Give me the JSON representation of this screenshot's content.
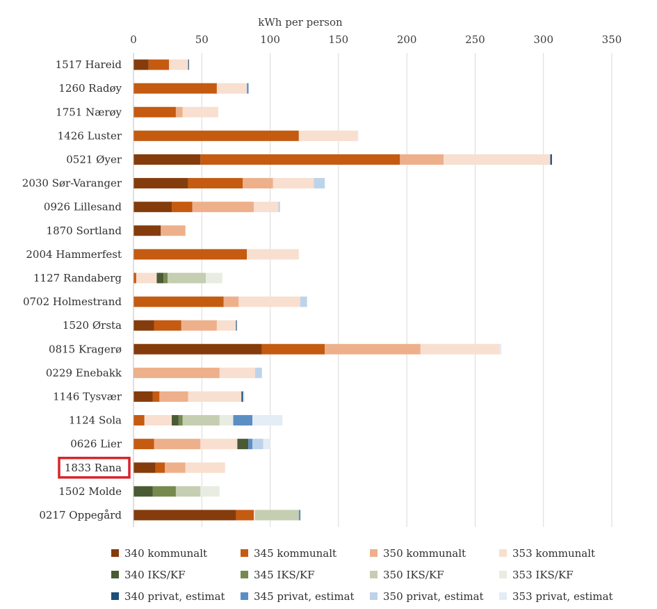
{
  "chart_data": {
    "type": "bar",
    "orientation": "horizontal",
    "stacked": true,
    "xlabel": "kWh per person",
    "xlim": [
      0,
      350
    ],
    "xticks": [
      0,
      50,
      100,
      150,
      200,
      250,
      300,
      350
    ],
    "grid": "vertical",
    "legend_position": "bottom",
    "highlighted_category": "1833 Rana",
    "categories": [
      "1517 Hareid",
      "1260 Radøy",
      "1751 Nærøy",
      "1426 Luster",
      "0521 Øyer",
      "2030 Sør-Varanger",
      "0926 Lillesand",
      "1870 Sortland",
      "2004 Hammerfest",
      "1127 Randaberg",
      "0702 Holmestrand",
      "1520 Ørsta",
      "0815 Kragerø",
      "0229 Enebakk",
      "1146 Tysvær",
      "1124 Sola",
      "0626 Lier",
      "1833 Rana",
      "1502 Molde",
      "0217 Oppegård"
    ],
    "series": [
      {
        "name": "340 kommunalt",
        "color": "#843c0c",
        "values": [
          11,
          0,
          0,
          0,
          49,
          40,
          28,
          20,
          0,
          0,
          0,
          15,
          94,
          0,
          14,
          0,
          0,
          16,
          0,
          75
        ]
      },
      {
        "name": "345 kommunalt",
        "color": "#c55a11",
        "values": [
          15,
          61,
          31,
          121,
          146,
          40,
          15,
          0,
          83,
          2,
          66,
          20,
          46,
          0,
          5,
          8,
          15,
          7,
          0,
          13
        ]
      },
      {
        "name": "350 kommunalt",
        "color": "#edb08b",
        "values": [
          0,
          0,
          5,
          0,
          32,
          22,
          45,
          18,
          0,
          0,
          11,
          26,
          70,
          63,
          21,
          0,
          34,
          15,
          0,
          0
        ]
      },
      {
        "name": "353 kommunalt",
        "color": "#f8dfd0",
        "values": [
          14,
          22,
          26,
          43,
          78,
          30,
          18,
          0,
          38,
          15,
          45,
          14,
          58,
          26,
          39,
          20,
          27,
          29,
          0,
          1
        ]
      },
      {
        "name": "340 IKS/KF",
        "color": "#4a5a34",
        "values": [
          0,
          0,
          0,
          0,
          0,
          0,
          0,
          0,
          0,
          5,
          0,
          0,
          0,
          0,
          0,
          5,
          8,
          0,
          14,
          0
        ]
      },
      {
        "name": "345 IKS/KF",
        "color": "#76894f",
        "values": [
          0,
          0,
          0,
          0,
          0,
          0,
          0,
          0,
          0,
          3,
          0,
          0,
          0,
          0,
          0,
          3,
          0,
          0,
          17,
          0
        ]
      },
      {
        "name": "350 IKS/KF",
        "color": "#c5ceb0",
        "values": [
          0,
          0,
          0,
          0,
          0,
          0,
          0,
          0,
          0,
          28,
          0,
          0,
          0,
          0,
          0,
          27,
          0,
          0,
          18,
          32
        ]
      },
      {
        "name": "353 IKS/KF",
        "color": "#e9ece1",
        "values": [
          0,
          0,
          0,
          0,
          0,
          0,
          0,
          0,
          0,
          12,
          0,
          0,
          0,
          0,
          0,
          10,
          0,
          0,
          14,
          0
        ]
      },
      {
        "name": "340 privat, estimat",
        "color": "#1f4e79",
        "values": [
          0.6,
          0,
          0,
          0,
          1.2,
          0,
          0,
          0,
          0,
          0,
          0,
          0.6,
          0,
          0,
          1.2,
          0,
          0,
          0,
          0,
          0
        ]
      },
      {
        "name": "345 privat, estimat",
        "color": "#5b8fc4",
        "values": [
          0,
          1.2,
          0,
          0,
          0,
          0,
          0,
          0,
          0,
          0,
          0,
          0,
          0,
          0,
          0,
          14,
          3,
          0,
          0,
          1.2
        ]
      },
      {
        "name": "350 privat, estimat",
        "color": "#bdd3ea",
        "values": [
          0,
          0,
          0,
          0,
          0,
          8,
          1.2,
          0,
          0,
          0,
          5,
          0,
          0,
          5,
          0,
          0,
          8,
          0,
          0,
          0
        ]
      },
      {
        "name": "353 privat, estimat",
        "color": "#e4ecf5",
        "values": [
          0,
          0,
          0,
          0.6,
          0,
          0,
          0,
          0,
          0,
          0,
          0,
          0,
          1.2,
          0,
          1.2,
          22,
          5,
          0,
          0,
          0
        ]
      }
    ]
  }
}
